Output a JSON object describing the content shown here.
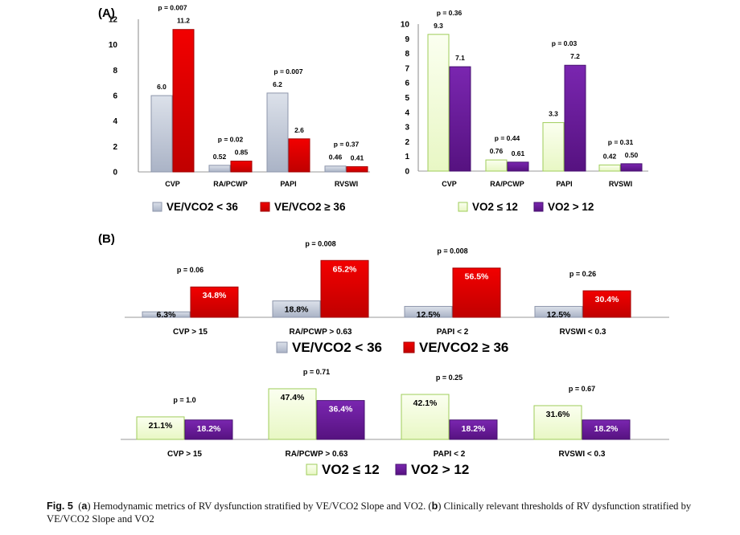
{
  "panel_labels": {
    "a": "(A)",
    "b": "(B)"
  },
  "caption": {
    "fig": "Fig. 5",
    "part_a_letter": "a",
    "part_a_text": "Hemodynamic metrics of RV dysfunction stratified by VE/VCO2 Slope and VO2.",
    "part_b_letter": "b",
    "part_b_text": "Clinically relevant thresholds of RV dysfunction stratified by VE/VCO2 Slope and VO2"
  },
  "colors": {
    "gray": "#c5ccdb",
    "gray_edge": "#8d96ab",
    "red": "#e60000",
    "red_edge": "#a30000",
    "green": "#f1fbd5",
    "green_edge": "#9fcc5a",
    "purple": "#6a1d9c",
    "purple_edge": "#471270"
  },
  "chart_data": [
    {
      "id": "A1",
      "type": "bar",
      "categories": [
        "CVP",
        "RA/PCWP",
        "PAPI",
        "RVSWI"
      ],
      "series": [
        {
          "name": "VE/VCO2 < 36",
          "values": [
            6.0,
            0.52,
            6.2,
            0.46
          ],
          "labels": [
            "6.0",
            "0.52",
            "6.2",
            "0.46"
          ]
        },
        {
          "name": "VE/VCO2 ≥ 36",
          "values": [
            11.2,
            0.85,
            2.6,
            0.41
          ],
          "labels": [
            "11.2",
            "0.85",
            "2.6",
            "0.41"
          ]
        }
      ],
      "p_values": [
        "p = 0.007",
        "p = 0.02",
        "p = 0.007",
        "p = 0.37"
      ],
      "yticks": [
        "0",
        "2",
        "4",
        "6",
        "8",
        "10",
        "12"
      ],
      "ylim": [
        0,
        12
      ],
      "legend": "bottom"
    },
    {
      "id": "A2",
      "type": "bar",
      "categories": [
        "CVP",
        "RA/PCWP",
        "PAPI",
        "RVSWI"
      ],
      "series": [
        {
          "name": "VO2 ≤ 12",
          "values": [
            9.3,
            0.76,
            3.3,
            0.42
          ],
          "labels": [
            "9.3",
            "0.76",
            "3.3",
            "0.42"
          ]
        },
        {
          "name": "VO2 > 12",
          "values": [
            7.1,
            0.61,
            7.2,
            0.5
          ],
          "labels": [
            "7.1",
            "0.61",
            "7.2",
            "0.50"
          ]
        }
      ],
      "p_values": [
        "p = 0.36",
        "p = 0.44",
        "p = 0.03",
        "p = 0.31"
      ],
      "yticks": [
        "0",
        "1",
        "2",
        "3",
        "4",
        "5",
        "6",
        "7",
        "8",
        "9",
        "10"
      ],
      "ylim": [
        0,
        10
      ],
      "legend": "bottom"
    },
    {
      "id": "B1",
      "type": "bar",
      "categories": [
        "CVP > 15",
        "RA/PCWP > 0.63",
        "PAPI < 2",
        "RVSWI < 0.3"
      ],
      "series": [
        {
          "name": "VE/VCO2 < 36",
          "values": [
            6.3,
            18.8,
            12.5,
            12.5
          ],
          "labels": [
            "6.3%",
            "18.8%",
            "12.5%",
            "12.5%"
          ]
        },
        {
          "name": "VE/VCO2 ≥ 36",
          "values": [
            34.8,
            65.2,
            56.5,
            30.4
          ],
          "labels": [
            "34.8%",
            "65.2%",
            "56.5%",
            "30.4%"
          ]
        }
      ],
      "p_values": [
        "p = 0.06",
        "p = 0.008",
        "p = 0.008",
        "p = 0.26"
      ],
      "unit": "%",
      "legend": "bottom"
    },
    {
      "id": "B2",
      "type": "bar",
      "categories": [
        "CVP > 15",
        "RA/PCWP > 0.63",
        "PAPI < 2",
        "RVSWI < 0.3"
      ],
      "series": [
        {
          "name": "VO2 ≤ 12",
          "values": [
            21.1,
            47.4,
            42.1,
            31.6
          ],
          "labels": [
            "21.1%",
            "47.4%",
            "42.1%",
            "31.6%"
          ]
        },
        {
          "name": "VO2 > 12",
          "values": [
            18.2,
            36.4,
            18.2,
            18.2
          ],
          "labels": [
            "18.2%",
            "36.4%",
            "18.2%",
            "18.2%"
          ]
        }
      ],
      "p_values": [
        "p = 1.0",
        "p = 0.71",
        "p = 0.25",
        "p = 0.67"
      ],
      "unit": "%",
      "legend": "bottom"
    }
  ]
}
